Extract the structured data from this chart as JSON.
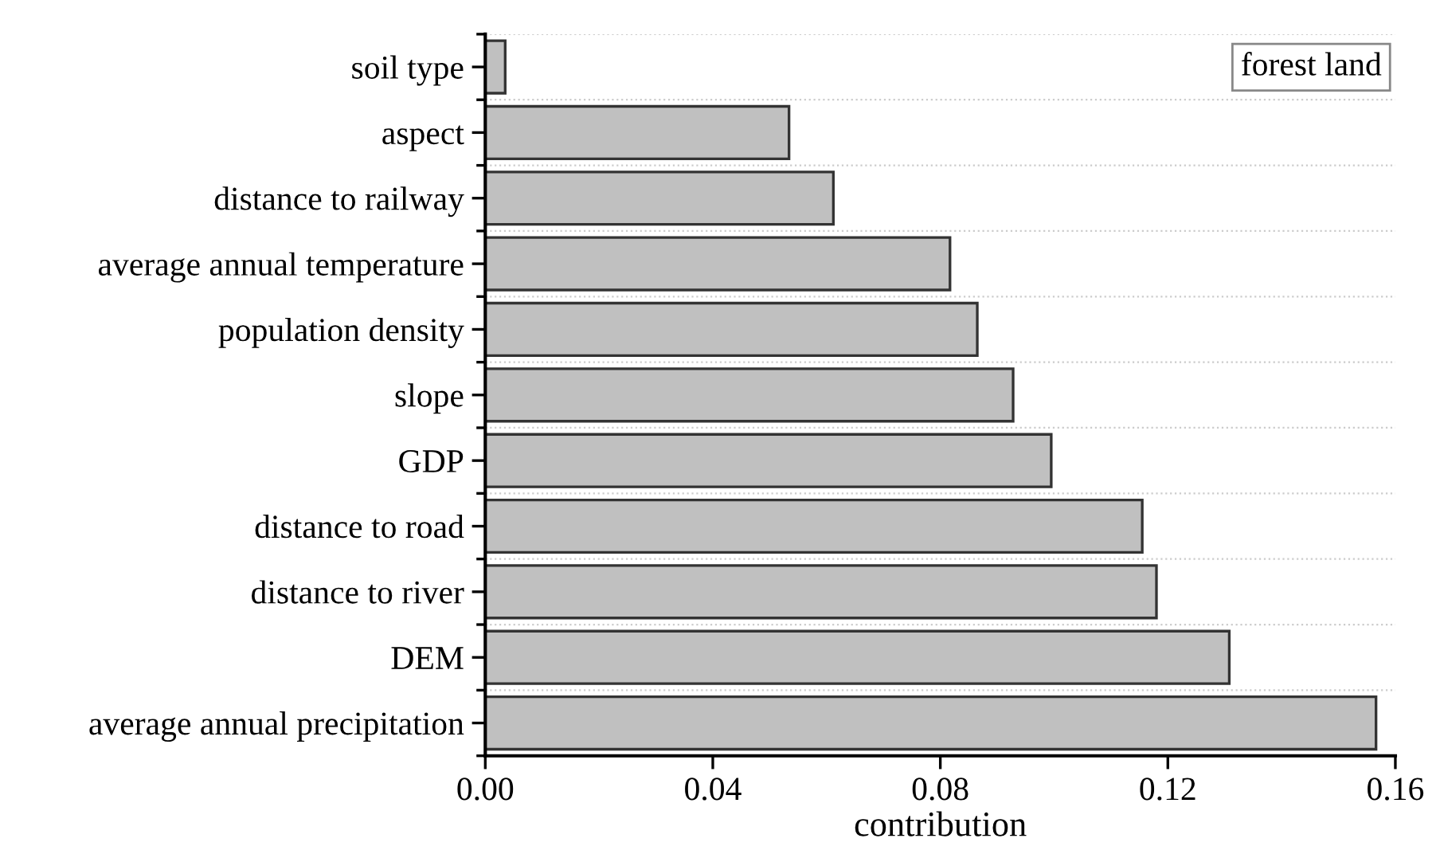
{
  "chart_data": {
    "type": "bar",
    "orientation": "horizontal",
    "xlabel": "contribution",
    "annotations": [
      "forest land"
    ],
    "categories": [
      "soil type",
      "aspect",
      "distance to railway",
      "average annual temperature",
      "population density",
      "slope",
      "GDP",
      "distance to road",
      "distance to river",
      "DEM",
      "average annual precipitation"
    ],
    "values": [
      0.0035,
      0.0534,
      0.0612,
      0.0817,
      0.0865,
      0.0928,
      0.0995,
      0.1155,
      0.118,
      0.1308,
      0.1566
    ],
    "color": "#c0c0c0",
    "xlim": [
      0,
      0.16
    ],
    "xticks": [
      {
        "value": 0,
        "label": "0.00"
      },
      {
        "value": 0.04,
        "label": "0.04"
      },
      {
        "value": 0.08,
        "label": "0.08"
      },
      {
        "value": 0.12,
        "label": "0.12"
      },
      {
        "value": 0.16,
        "label": "0.16"
      }
    ],
    "grid": "y"
  }
}
